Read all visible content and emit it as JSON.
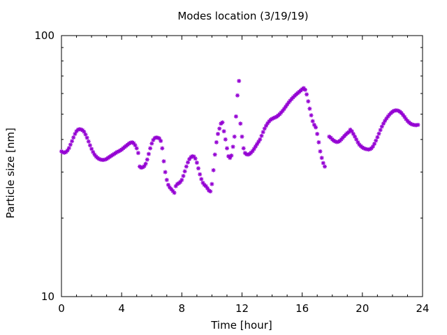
{
  "chart_data": {
    "type": "scatter",
    "title": "Modes location (3/19/19)",
    "xlabel": "Time [hour]",
    "ylabel": "Particle size [nm]",
    "xlim": [
      0,
      24
    ],
    "ylim": [
      10,
      100
    ],
    "yscale": "log",
    "xticks": [
      0,
      4,
      8,
      12,
      16,
      20,
      24
    ],
    "yticks": [
      10,
      100
    ],
    "grid": false,
    "marker_color": "#9400D3",
    "series": [
      {
        "points": [
          [
            0.0,
            36
          ],
          [
            0.1,
            35.7
          ],
          [
            0.2,
            35.6
          ],
          [
            0.3,
            35.8
          ],
          [
            0.4,
            36.3
          ],
          [
            0.5,
            37.1
          ],
          [
            0.6,
            38.2
          ],
          [
            0.7,
            39.4
          ],
          [
            0.8,
            40.7
          ],
          [
            0.9,
            42.0
          ],
          [
            1.0,
            43.0
          ],
          [
            1.1,
            43.6
          ],
          [
            1.2,
            43.8
          ],
          [
            1.3,
            43.7
          ],
          [
            1.4,
            43.4
          ],
          [
            1.5,
            42.8
          ],
          [
            1.6,
            41.8
          ],
          [
            1.7,
            40.6
          ],
          [
            1.8,
            39.3
          ],
          [
            1.9,
            38.0
          ],
          [
            2.0,
            36.8
          ],
          [
            2.1,
            35.8
          ],
          [
            2.2,
            35.0
          ],
          [
            2.3,
            34.4
          ],
          [
            2.4,
            34.0
          ],
          [
            2.5,
            33.7
          ],
          [
            2.6,
            33.5
          ],
          [
            2.7,
            33.4
          ],
          [
            2.8,
            33.4
          ],
          [
            2.9,
            33.5
          ],
          [
            3.0,
            33.7
          ],
          [
            3.1,
            34.0
          ],
          [
            3.2,
            34.3
          ],
          [
            3.3,
            34.6
          ],
          [
            3.4,
            34.9
          ],
          [
            3.5,
            35.2
          ],
          [
            3.6,
            35.5
          ],
          [
            3.7,
            35.8
          ],
          [
            3.8,
            36.0
          ],
          [
            3.9,
            36.3
          ],
          [
            4.0,
            36.6
          ],
          [
            4.1,
            37.0
          ],
          [
            4.2,
            37.4
          ],
          [
            4.3,
            37.8
          ],
          [
            4.4,
            38.2
          ],
          [
            4.5,
            38.6
          ],
          [
            4.6,
            38.9
          ],
          [
            4.7,
            39.0
          ],
          [
            4.8,
            38.7
          ],
          [
            4.9,
            38.0
          ],
          [
            5.0,
            37.0
          ],
          [
            5.1,
            35.5
          ],
          [
            5.2,
            31.5
          ],
          [
            5.3,
            31.2
          ],
          [
            5.4,
            31.3
          ],
          [
            5.5,
            31.6
          ],
          [
            5.6,
            32.3
          ],
          [
            5.7,
            33.5
          ],
          [
            5.8,
            35.2
          ],
          [
            5.9,
            37.0
          ],
          [
            6.0,
            38.6
          ],
          [
            6.1,
            39.8
          ],
          [
            6.2,
            40.5
          ],
          [
            6.3,
            40.7
          ],
          [
            6.4,
            40.6
          ],
          [
            6.5,
            40.4
          ],
          [
            6.6,
            39.5
          ],
          [
            6.7,
            37.0
          ],
          [
            6.8,
            33.0
          ],
          [
            6.9,
            30.0
          ],
          [
            7.0,
            28.0
          ],
          [
            7.1,
            26.8
          ],
          [
            7.2,
            26.2
          ],
          [
            7.3,
            25.8
          ],
          [
            7.4,
            25.4
          ],
          [
            7.5,
            25.0
          ],
          [
            7.6,
            26.5
          ],
          [
            7.7,
            27.0
          ],
          [
            7.8,
            27.2
          ],
          [
            7.9,
            27.5
          ],
          [
            8.0,
            28.0
          ],
          [
            8.1,
            29.0
          ],
          [
            8.2,
            30.2
          ],
          [
            8.3,
            31.5
          ],
          [
            8.4,
            32.7
          ],
          [
            8.5,
            33.6
          ],
          [
            8.6,
            34.2
          ],
          [
            8.7,
            34.5
          ],
          [
            8.8,
            34.4
          ],
          [
            8.9,
            33.8
          ],
          [
            9.0,
            32.6
          ],
          [
            9.1,
            31.0
          ],
          [
            9.2,
            29.4
          ],
          [
            9.3,
            28.2
          ],
          [
            9.4,
            27.3
          ],
          [
            9.5,
            26.8
          ],
          [
            9.6,
            26.5
          ],
          [
            9.7,
            26.0
          ],
          [
            9.8,
            25.5
          ],
          [
            9.9,
            25.3
          ],
          [
            10.0,
            27.0
          ],
          [
            10.1,
            30.5
          ],
          [
            10.2,
            35.0
          ],
          [
            10.3,
            39.0
          ],
          [
            10.4,
            42.0
          ],
          [
            10.5,
            44.0
          ],
          [
            10.6,
            46.0
          ],
          [
            10.7,
            46.5
          ],
          [
            10.8,
            43.0
          ],
          [
            10.9,
            40.0
          ],
          [
            11.0,
            37.0
          ],
          [
            11.1,
            34.5
          ],
          [
            11.2,
            34.0
          ],
          [
            11.3,
            34.7
          ],
          [
            11.4,
            37.5
          ],
          [
            11.5,
            41.0
          ],
          [
            11.6,
            49.0
          ],
          [
            11.7,
            59.0
          ],
          [
            11.8,
            67.0
          ],
          [
            11.9,
            46.0
          ],
          [
            12.0,
            41.0
          ],
          [
            12.1,
            37.0
          ],
          [
            12.2,
            35.5
          ],
          [
            12.3,
            35.1
          ],
          [
            12.4,
            35.0
          ],
          [
            12.5,
            35.2
          ],
          [
            12.6,
            35.6
          ],
          [
            12.7,
            36.1
          ],
          [
            12.8,
            36.8
          ],
          [
            12.9,
            37.6
          ],
          [
            13.0,
            38.4
          ],
          [
            13.1,
            39.2
          ],
          [
            13.2,
            40.0
          ],
          [
            13.3,
            41.3
          ],
          [
            13.4,
            42.7
          ],
          [
            13.5,
            44.0
          ],
          [
            13.6,
            45.1
          ],
          [
            13.7,
            46.1
          ],
          [
            13.8,
            46.9
          ],
          [
            13.9,
            47.6
          ],
          [
            14.0,
            48.0
          ],
          [
            14.1,
            48.3
          ],
          [
            14.2,
            48.6
          ],
          [
            14.3,
            48.9
          ],
          [
            14.4,
            49.4
          ],
          [
            14.5,
            50.0
          ],
          [
            14.6,
            50.7
          ],
          [
            14.7,
            51.5
          ],
          [
            14.8,
            52.4
          ],
          [
            14.9,
            53.4
          ],
          [
            15.0,
            54.4
          ],
          [
            15.1,
            55.4
          ],
          [
            15.2,
            56.3
          ],
          [
            15.3,
            57.2
          ],
          [
            15.4,
            58.0
          ],
          [
            15.5,
            58.8
          ],
          [
            15.6,
            59.5
          ],
          [
            15.7,
            60.2
          ],
          [
            15.8,
            60.9
          ],
          [
            15.9,
            61.6
          ],
          [
            16.0,
            62.3
          ],
          [
            16.1,
            62.9
          ],
          [
            16.2,
            62.0
          ],
          [
            16.3,
            59.5
          ],
          [
            16.4,
            56.0
          ],
          [
            16.5,
            52.5
          ],
          [
            16.6,
            49.5
          ],
          [
            16.7,
            47.0
          ],
          [
            16.8,
            45.5
          ],
          [
            16.9,
            44.5
          ],
          [
            17.0,
            42.0
          ],
          [
            17.1,
            39.0
          ],
          [
            17.2,
            36.0
          ],
          [
            17.3,
            34.0
          ],
          [
            17.4,
            32.5
          ],
          [
            17.5,
            31.5
          ],
          [
            17.8,
            41.0
          ],
          [
            17.9,
            40.6
          ],
          [
            18.0,
            40.0
          ],
          [
            18.1,
            39.6
          ],
          [
            18.2,
            39.3
          ],
          [
            18.3,
            39.1
          ],
          [
            18.4,
            39.2
          ],
          [
            18.5,
            39.5
          ],
          [
            18.6,
            40.0
          ],
          [
            18.7,
            40.6
          ],
          [
            18.8,
            41.2
          ],
          [
            18.9,
            41.8
          ],
          [
            19.0,
            42.3
          ],
          [
            19.1,
            42.7
          ],
          [
            19.2,
            43.6
          ],
          [
            19.3,
            43.0
          ],
          [
            19.4,
            42.0
          ],
          [
            19.5,
            41.0
          ],
          [
            19.6,
            40.0
          ],
          [
            19.7,
            39.0
          ],
          [
            19.8,
            38.2
          ],
          [
            19.9,
            37.7
          ],
          [
            20.0,
            37.3
          ],
          [
            20.1,
            37.0
          ],
          [
            20.2,
            36.8
          ],
          [
            20.3,
            36.7
          ],
          [
            20.4,
            36.6
          ],
          [
            20.5,
            36.7
          ],
          [
            20.6,
            37.0
          ],
          [
            20.7,
            37.6
          ],
          [
            20.8,
            38.5
          ],
          [
            20.9,
            39.6
          ],
          [
            21.0,
            40.8
          ],
          [
            21.1,
            42.1
          ],
          [
            21.2,
            43.5
          ],
          [
            21.3,
            44.8
          ],
          [
            21.4,
            46.0
          ],
          [
            21.5,
            47.1
          ],
          [
            21.6,
            48.1
          ],
          [
            21.7,
            49.0
          ],
          [
            21.8,
            49.8
          ],
          [
            21.9,
            50.5
          ],
          [
            22.0,
            51.1
          ],
          [
            22.1,
            51.5
          ],
          [
            22.2,
            51.7
          ],
          [
            22.3,
            51.7
          ],
          [
            22.4,
            51.5
          ],
          [
            22.5,
            51.1
          ],
          [
            22.6,
            50.5
          ],
          [
            22.7,
            49.7
          ],
          [
            22.8,
            48.8
          ],
          [
            22.9,
            47.9
          ],
          [
            23.0,
            47.1
          ],
          [
            23.1,
            46.5
          ],
          [
            23.2,
            46.0
          ],
          [
            23.3,
            45.7
          ],
          [
            23.4,
            45.5
          ],
          [
            23.5,
            45.4
          ],
          [
            23.6,
            45.4
          ],
          [
            23.7,
            45.5
          ]
        ]
      }
    ]
  }
}
